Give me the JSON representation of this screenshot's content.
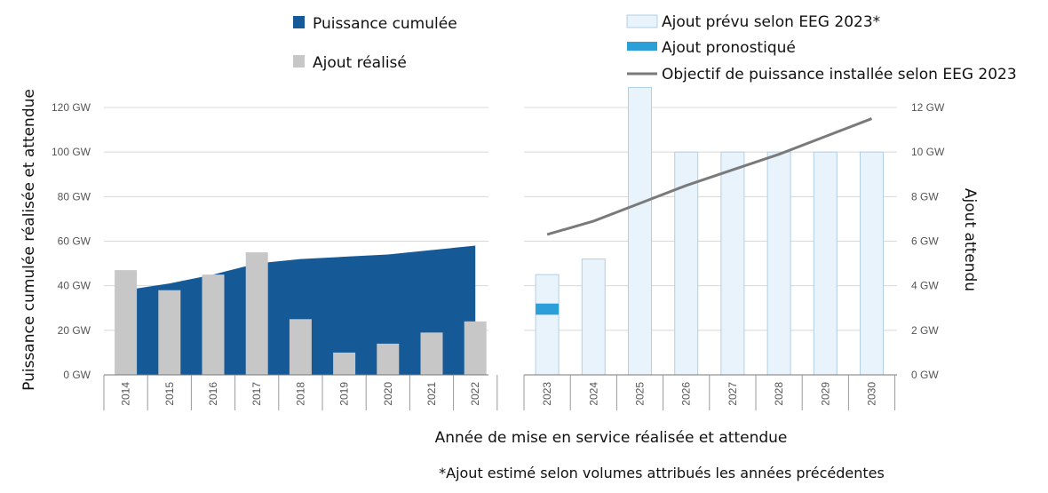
{
  "chart_data": {
    "type": "bar",
    "left_panel": {
      "years": [
        "2014",
        "2015",
        "2016",
        "2017",
        "2018",
        "2019",
        "2020",
        "2021",
        "2022"
      ],
      "cumulative_series": {
        "name": "Puissance cumulée",
        "color": "#155a96",
        "values": [
          38,
          41,
          45,
          50,
          52,
          53,
          54,
          56,
          58
        ]
      },
      "realized_series": {
        "name": "Ajout réalisé",
        "color": "#c7c7c7",
        "values_gw_right_scale": [
          4.7,
          3.8,
          4.5,
          5.5,
          2.5,
          1.0,
          1.4,
          1.9,
          2.4
        ]
      },
      "ylabel": "Puissance cumulée réalisée et attendue",
      "yticks": [
        "0 GW",
        "20 GW",
        "40 GW",
        "60 GW",
        "80 GW",
        "100 GW",
        "120 GW"
      ],
      "ylim": [
        0,
        120
      ]
    },
    "right_panel": {
      "years": [
        "2023",
        "2024",
        "2025",
        "2026",
        "2027",
        "2028",
        "2029",
        "2030"
      ],
      "planned_series": {
        "name": "Ajout prévu selon EEG 2023*",
        "color": "#e8f3fb",
        "border": "#b0cfe6",
        "values": [
          4.5,
          5.2,
          12.9,
          10,
          10,
          10,
          10,
          10
        ]
      },
      "forecast_series": {
        "name": "Ajout pronostiqué",
        "color": "#2a9fd8",
        "values": [
          {
            "from": 2.7,
            "to": 3.2
          }
        ]
      },
      "target_series": {
        "name": "Objectif de puissance installée selon EEG 2023",
        "color": "#7a7a7a",
        "values": [
          6.3,
          6.9,
          7.7,
          8.5,
          9.2,
          9.9,
          10.7,
          11.5
        ]
      },
      "ylabel": "Ajout attendu",
      "yticks": [
        "0 GW",
        "2 GW",
        "4 GW",
        "6 GW",
        "8 GW",
        "10 GW",
        "12 GW"
      ],
      "ylim": [
        0,
        12
      ]
    },
    "xlabel": "Année de mise en service réalisée et attendue",
    "footnote": "*Ajout estimé selon volumes attribués les années précédentes",
    "grid": true,
    "legend_left_position": "top-center",
    "legend_right_position": "top-right"
  }
}
